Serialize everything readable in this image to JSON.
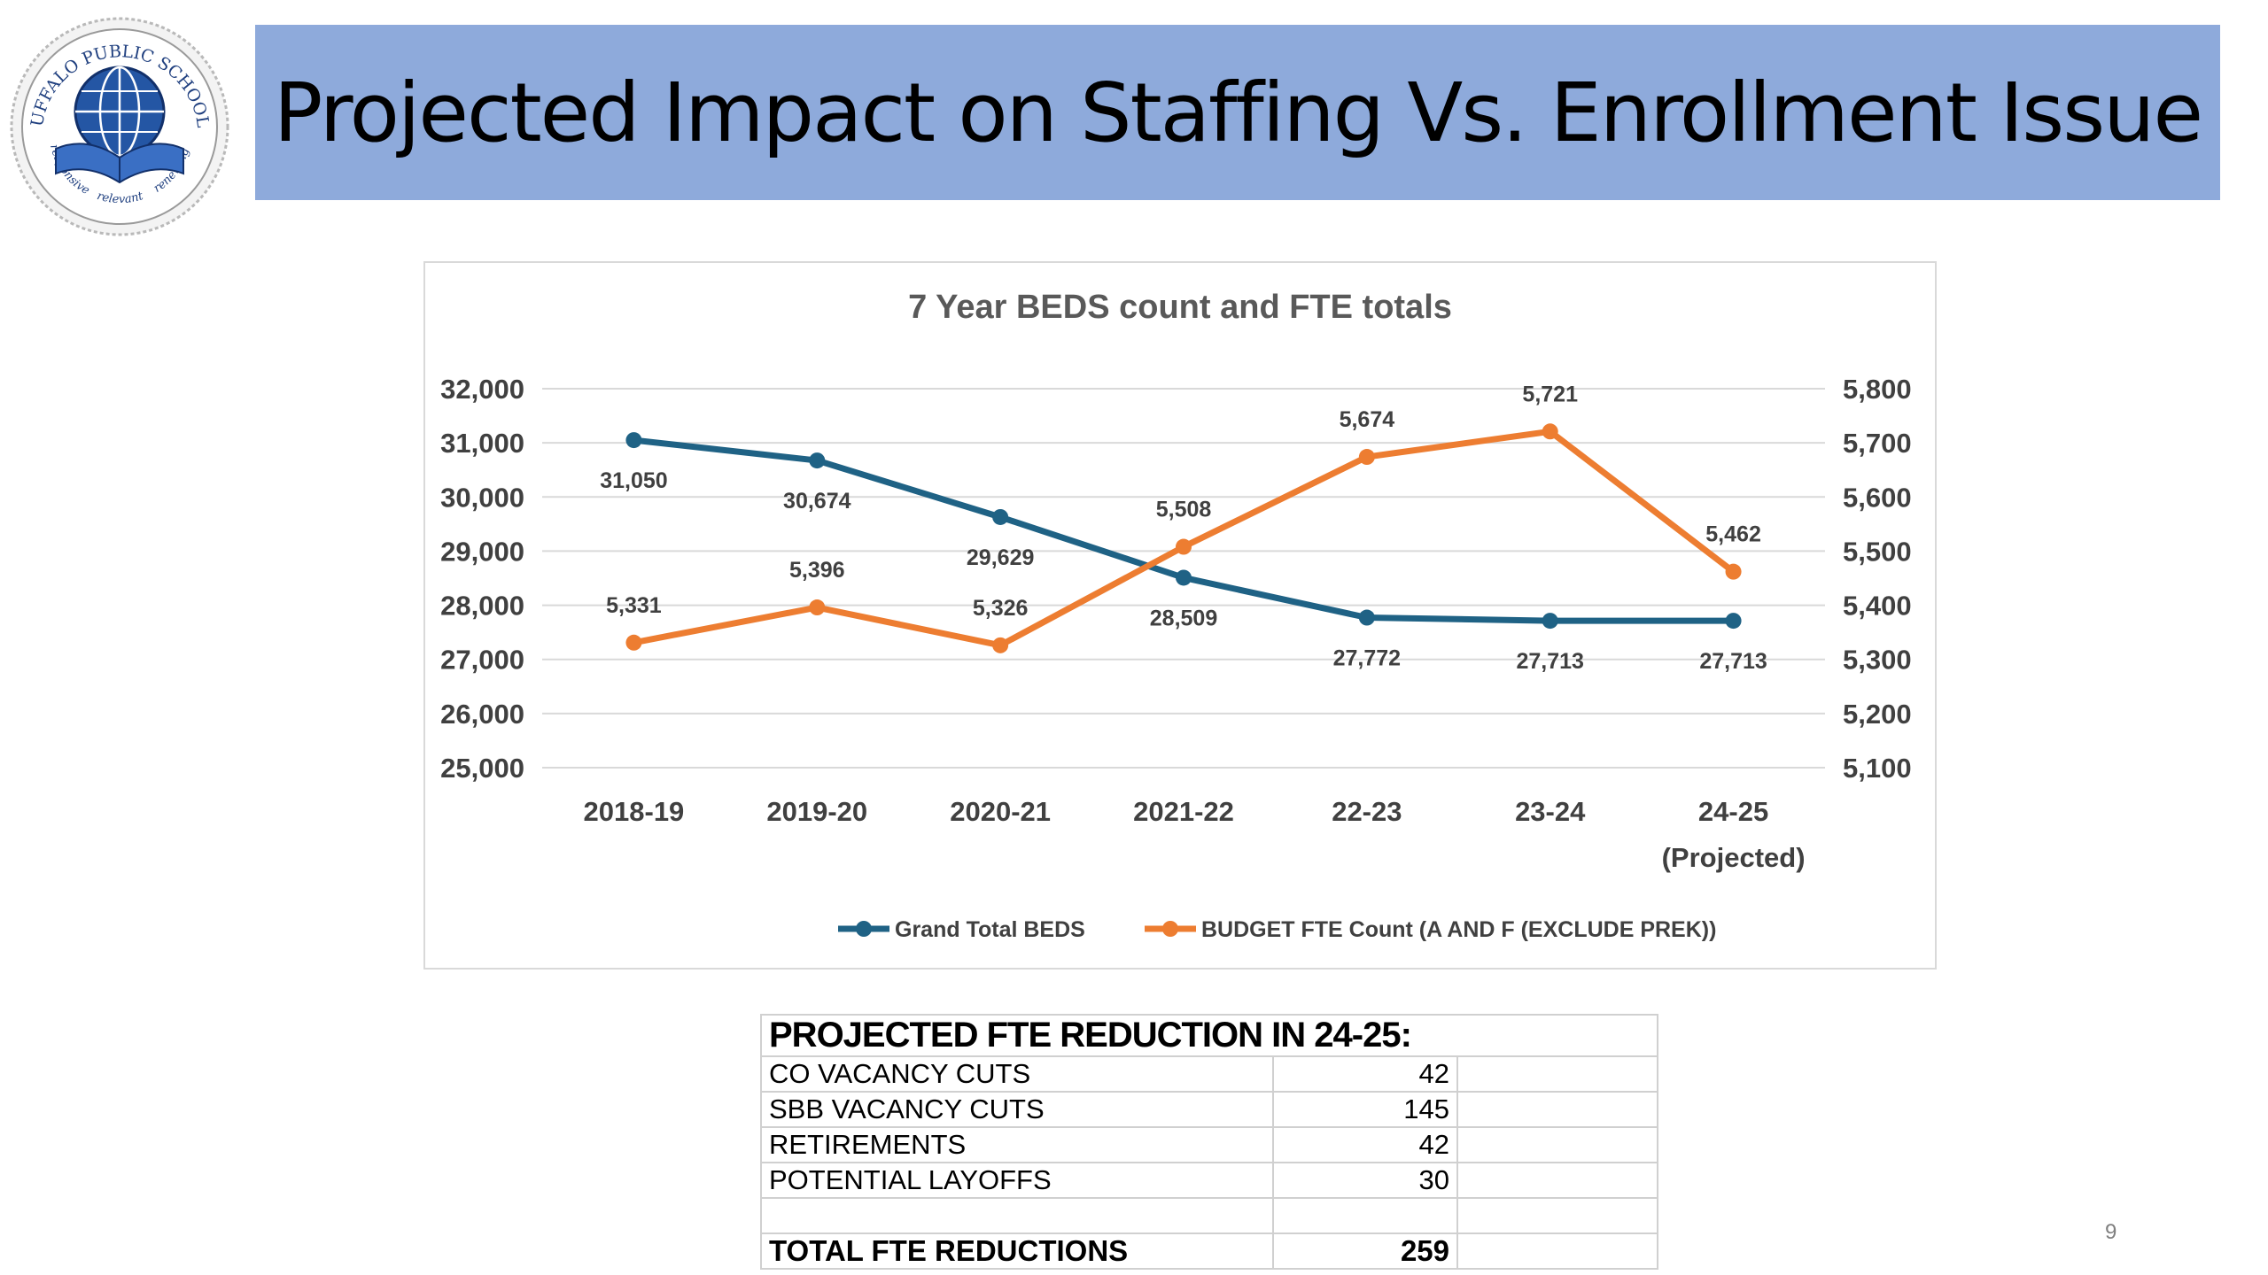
{
  "logo": {
    "text_top": "BUFFALO PUBLIC SCHOOLS",
    "text_bottom_left": "responsive",
    "text_bottom_middle": "relevant",
    "text_bottom_right": "renewing"
  },
  "header": {
    "title": "Projected Impact on Staffing Vs. Enrollment Issue"
  },
  "chart_data": {
    "type": "line",
    "title": "7 Year BEDS count and FTE totals",
    "categories": [
      "2018-19",
      "2019-20",
      "2020-21",
      "2021-22",
      "22-23",
      "23-24",
      "24-25\n(Projected)"
    ],
    "category_lines": [
      [
        "2018-19"
      ],
      [
        "2019-20"
      ],
      [
        "2020-21"
      ],
      [
        "2021-22"
      ],
      [
        "22-23"
      ],
      [
        "23-24"
      ],
      [
        "24-25",
        "(Projected)"
      ]
    ],
    "y_left": {
      "min": 25000,
      "max": 32000,
      "ticks": [
        "25,000",
        "26,000",
        "27,000",
        "28,000",
        "29,000",
        "30,000",
        "31,000",
        "32,000"
      ]
    },
    "y_right": {
      "min": 5100,
      "max": 5800,
      "ticks": [
        "5,100",
        "5,200",
        "5,300",
        "5,400",
        "5,500",
        "5,600",
        "5,700",
        "5,800"
      ]
    },
    "grid": true,
    "legend_position": "bottom",
    "series": [
      {
        "name": "Grand Total BEDS",
        "axis": "left",
        "color": "#1f6285",
        "values": [
          31050,
          30674,
          29629,
          28509,
          27772,
          27713,
          27713
        ],
        "labels": [
          "31,050",
          "30,674",
          "29,629",
          "28,509",
          "27,772",
          "27,713",
          "27,713"
        ]
      },
      {
        "name": "BUDGET FTE Count (A AND F (EXCLUDE PREK))",
        "axis": "right",
        "color": "#ed7d31",
        "values": [
          5331,
          5396,
          5326,
          5508,
          5674,
          5721,
          5462
        ],
        "labels": [
          "5,331",
          "5,396",
          "5,326",
          "5,508",
          "5,674",
          "5,721",
          "5,462"
        ]
      }
    ]
  },
  "fte_table": {
    "heading": "PROJECTED FTE REDUCTION IN 24-25:",
    "rows": [
      {
        "label": "CO VACANCY CUTS",
        "value": "42"
      },
      {
        "label": "SBB VACANCY CUTS",
        "value": "145"
      },
      {
        "label": "RETIREMENTS",
        "value": "42"
      },
      {
        "label": "POTENTIAL LAYOFFS",
        "value": "30"
      }
    ],
    "total_label": "TOTAL FTE REDUCTIONS",
    "total_value": "259"
  },
  "page_number": "9"
}
